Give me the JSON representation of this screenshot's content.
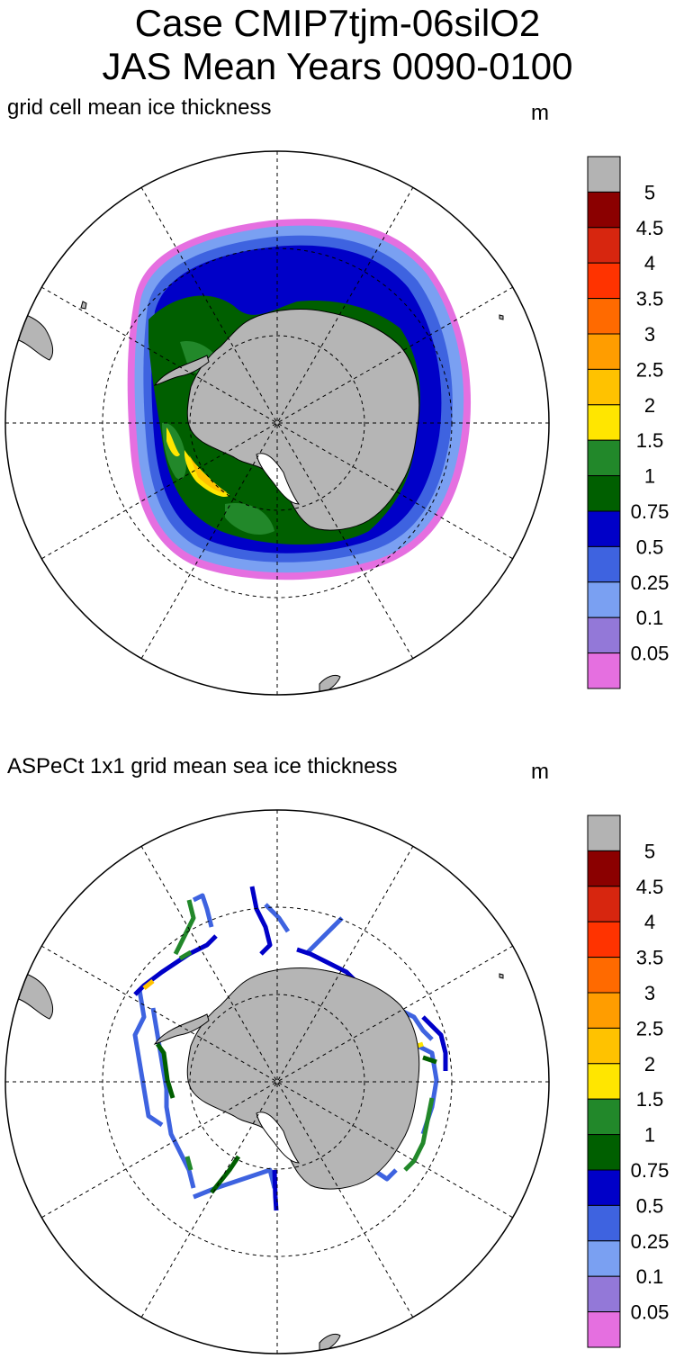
{
  "title": {
    "line1": "Case CMIP7tjm-06silO2",
    "line2": "JAS Mean   Years 0090-0100"
  },
  "panels": [
    {
      "label": "grid cell mean ice thickness",
      "units": "m"
    },
    {
      "label": "ASPeCt 1x1 grid mean sea ice thickness",
      "units": "m"
    }
  ],
  "colorbar": {
    "labels": [
      "5",
      "4.5",
      "4",
      "3.5",
      "3",
      "2.5",
      "2",
      "1.5",
      "1",
      "0.75",
      "0.5",
      "0.25",
      "0.1",
      "0.05"
    ],
    "colors": [
      "#b3b3b3",
      "#8b0000",
      "#d7260f",
      "#ff3300",
      "#ff6a00",
      "#ff9d00",
      "#ffc200",
      "#ffe600",
      "#22882a",
      "#005f00",
      "#0000c8",
      "#3e63e0",
      "#7aa0f2",
      "#9378d8",
      "#e56fe0"
    ]
  },
  "colors": {
    "land": "#b5b5b5",
    "coast": "#000000",
    "grid": "#000000"
  }
}
